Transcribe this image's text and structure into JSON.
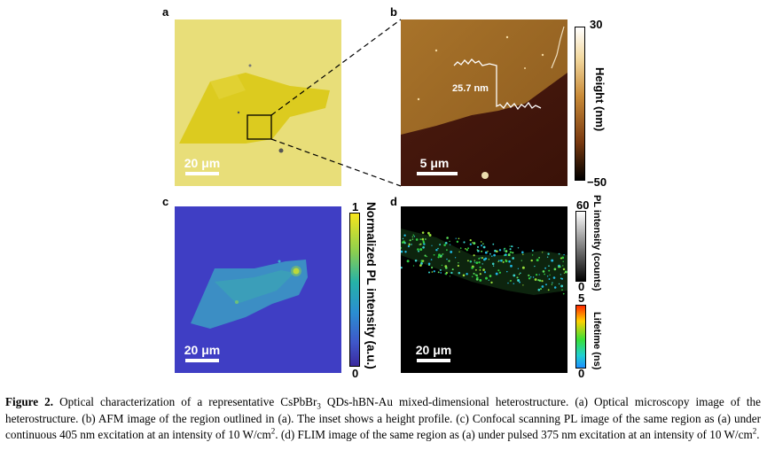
{
  "panels": {
    "a": {
      "label": "a",
      "scale": "20 μm"
    },
    "b": {
      "label": "b",
      "scale": "5 μm",
      "inset_value": "25.7 nm",
      "colorbar": {
        "max": "30",
        "min": "−50",
        "title": "Height (nm)"
      }
    },
    "c": {
      "label": "c",
      "scale": "20 μm",
      "colorbar": {
        "max": "1",
        "min": "0",
        "title": "Normalized PL intensity (a.u.)"
      }
    },
    "d": {
      "label": "d",
      "scale": "20 μm",
      "colorbar_top": {
        "max": "60",
        "min": "0",
        "title": "PL intensity (counts)"
      },
      "colorbar_bottom": {
        "max": "5",
        "min": "0",
        "title": "Lifetime (ns)"
      }
    }
  },
  "caption": {
    "figure": "Figure 2.",
    "t1": " Optical characterization of a representative CsPbBr",
    "sub3": "3",
    "t2": " QDs-hBN-Au mixed-dimensional heterostructure. (a) Optical microscopy image of the heterostructure. (b) AFM image of the region outlined in (a). The inset shows a height profile. (c) Confocal scanning PL image of the same region as (a) under continuous 405 nm excitation at an intensity of 10 W/cm",
    "sup2a": "2",
    "t3": ". (d) FLIM image of the same region as (a) under pulsed 375 nm excitation at an intensity of 10 W/cm",
    "sup2b": "2",
    "t4": "."
  }
}
